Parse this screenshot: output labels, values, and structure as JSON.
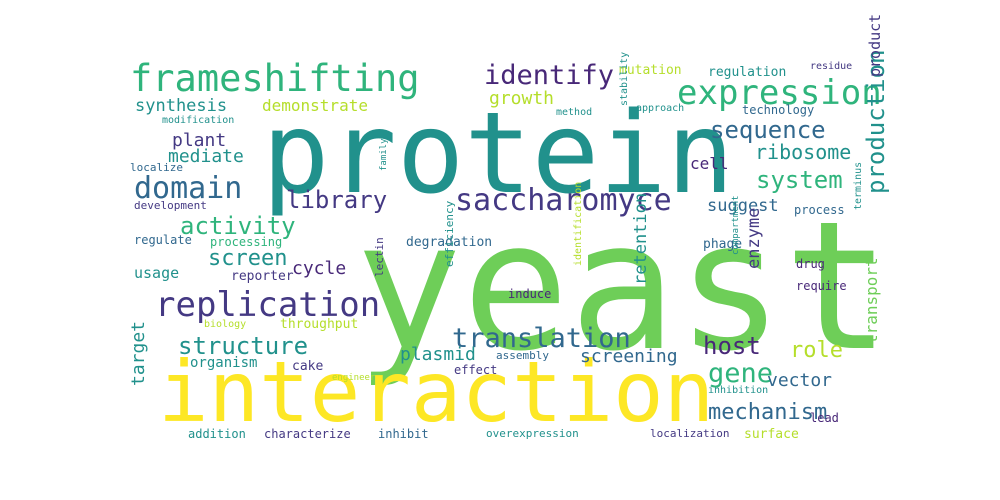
{
  "colors": {
    "dark_purple": "#482878",
    "purple": "#443983",
    "blue": "#31688e",
    "teal": "#21918c",
    "green_teal": "#2fb47c",
    "green": "#6ece58",
    "yellow_green": "#b5de2b",
    "yellow": "#fde725"
  },
  "words": [
    {
      "text": "yeast",
      "color": "green"
    },
    {
      "text": "protein",
      "color": "teal"
    },
    {
      "text": "interaction",
      "color": "yellow"
    },
    {
      "text": "frameshifting",
      "color": "green_teal"
    },
    {
      "text": "expression",
      "color": "green_teal"
    },
    {
      "text": "saccharomyce",
      "color": "purple"
    },
    {
      "text": "replication",
      "color": "purple"
    },
    {
      "text": "domain",
      "color": "blue"
    },
    {
      "text": "identify",
      "color": "dark_purple"
    },
    {
      "text": "translation",
      "color": "blue"
    },
    {
      "text": "library",
      "color": "purple"
    },
    {
      "text": "sequence",
      "color": "blue"
    },
    {
      "text": "system",
      "color": "green_teal"
    },
    {
      "text": "activity",
      "color": "green_teal"
    },
    {
      "text": "structure",
      "color": "teal"
    },
    {
      "text": "gene",
      "color": "green_teal"
    },
    {
      "text": "host",
      "color": "dark_purple"
    },
    {
      "text": "mechanism",
      "color": "blue"
    },
    {
      "text": "production",
      "color": "teal"
    },
    {
      "text": "screen",
      "color": "teal"
    },
    {
      "text": "role",
      "color": "yellow_green"
    },
    {
      "text": "ribosome",
      "color": "teal"
    },
    {
      "text": "growth",
      "color": "yellow_green"
    },
    {
      "text": "mediate",
      "color": "teal"
    },
    {
      "text": "synthesis",
      "color": "teal"
    },
    {
      "text": "demonstrate",
      "color": "yellow_green"
    },
    {
      "text": "plant",
      "color": "purple"
    },
    {
      "text": "cycle",
      "color": "dark_purple"
    },
    {
      "text": "suggest",
      "color": "blue"
    },
    {
      "text": "plasmid",
      "color": "teal"
    },
    {
      "text": "screening",
      "color": "blue"
    },
    {
      "text": "vector",
      "color": "blue"
    },
    {
      "text": "target",
      "color": "teal"
    },
    {
      "text": "retention",
      "color": "teal"
    },
    {
      "text": "enzyme",
      "color": "purple"
    },
    {
      "text": "transport",
      "color": "green"
    },
    {
      "text": "mutation",
      "color": "yellow_green"
    },
    {
      "text": "regulation",
      "color": "teal"
    },
    {
      "text": "cell",
      "color": "dark_purple"
    },
    {
      "text": "usage",
      "color": "teal"
    },
    {
      "text": "product",
      "color": "purple"
    },
    {
      "text": "organism",
      "color": "teal"
    },
    {
      "text": "throughput",
      "color": "yellow_green"
    },
    {
      "text": "reporter",
      "color": "purple"
    },
    {
      "text": "degradation",
      "color": "blue"
    },
    {
      "text": "cake",
      "color": "purple"
    },
    {
      "text": "phage",
      "color": "blue"
    },
    {
      "text": "technology",
      "color": "blue"
    },
    {
      "text": "process",
      "color": "blue"
    },
    {
      "text": "require",
      "color": "dark_purple"
    },
    {
      "text": "drug",
      "color": "dark_purple"
    },
    {
      "text": "surface",
      "color": "yellow_green"
    },
    {
      "text": "lead",
      "color": "dark_purple"
    },
    {
      "text": "induce",
      "color": "dark_purple"
    },
    {
      "text": "effect",
      "color": "purple"
    },
    {
      "text": "addition",
      "color": "teal"
    },
    {
      "text": "characterize",
      "color": "purple"
    },
    {
      "text": "inhibit",
      "color": "blue"
    },
    {
      "text": "overexpression",
      "color": "teal"
    },
    {
      "text": "localization",
      "color": "purple"
    },
    {
      "text": "regulate",
      "color": "blue"
    },
    {
      "text": "processing",
      "color": "green_teal"
    },
    {
      "text": "development",
      "color": "purple"
    },
    {
      "text": "localize",
      "color": "blue"
    },
    {
      "text": "modification",
      "color": "teal"
    },
    {
      "text": "approach",
      "color": "teal"
    },
    {
      "text": "method",
      "color": "teal"
    },
    {
      "text": "residue",
      "color": "purple"
    },
    {
      "text": "stability",
      "color": "teal"
    },
    {
      "text": "identification",
      "color": "yellow_green"
    },
    {
      "text": "efficiency",
      "color": "teal"
    },
    {
      "text": "lectin",
      "color": "purple"
    },
    {
      "text": "assembly",
      "color": "blue"
    },
    {
      "text": "compartment",
      "color": "teal"
    },
    {
      "text": "inhibition",
      "color": "teal"
    },
    {
      "text": "biology",
      "color": "yellow_green"
    },
    {
      "text": "terminus",
      "color": "teal"
    },
    {
      "text": "family",
      "color": "teal"
    },
    {
      "text": "engineer",
      "color": "yellow_green"
    }
  ]
}
